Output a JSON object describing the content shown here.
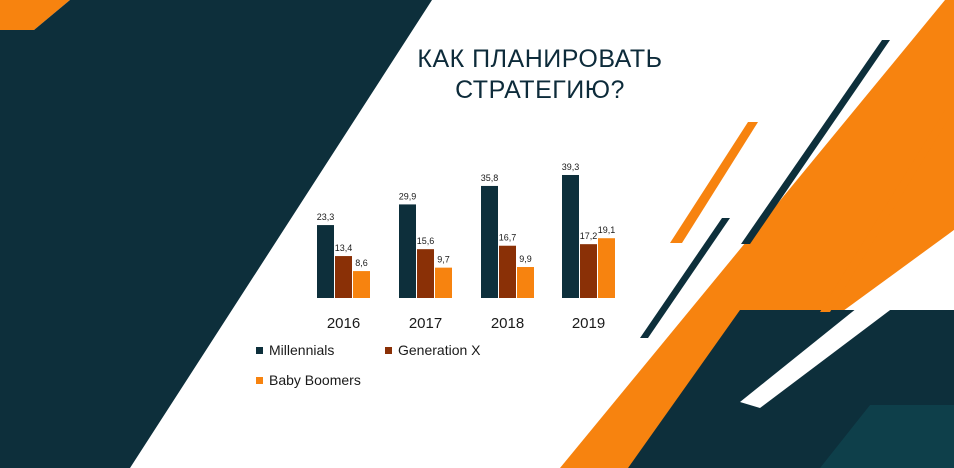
{
  "slide": {
    "title_line1": "КАК ПЛАНИРОВАТЬ",
    "title_line2": "СТРАТЕГИЮ?"
  },
  "colors": {
    "navy": "#0d2f3b",
    "orange": "#f7830f",
    "white": "#ffffff",
    "teal": "#0e3f4a"
  },
  "chart_data": {
    "type": "bar",
    "categories": [
      "2016",
      "2017",
      "2018",
      "2019"
    ],
    "series": [
      {
        "name": "Millennials",
        "color": "#0d2f3b",
        "values": [
          23.3,
          29.9,
          35.8,
          39.3
        ],
        "labels": [
          "23,3",
          "29,9",
          "35,8",
          "39,3"
        ]
      },
      {
        "name": "Generation X",
        "color": "#8a3006",
        "values": [
          13.4,
          15.6,
          16.7,
          17.2
        ],
        "labels": [
          "13,4",
          "15,6",
          "16,7",
          "17,2"
        ]
      },
      {
        "name": "Baby Boomers",
        "color": "#f7830f",
        "values": [
          8.6,
          9.7,
          9.9,
          19.1
        ],
        "labels": [
          "8,6",
          "9,7",
          "9,9",
          "19,1"
        ]
      }
    ],
    "ylim": [
      0,
      45
    ],
    "grid": false,
    "legend": "bottom-left"
  }
}
